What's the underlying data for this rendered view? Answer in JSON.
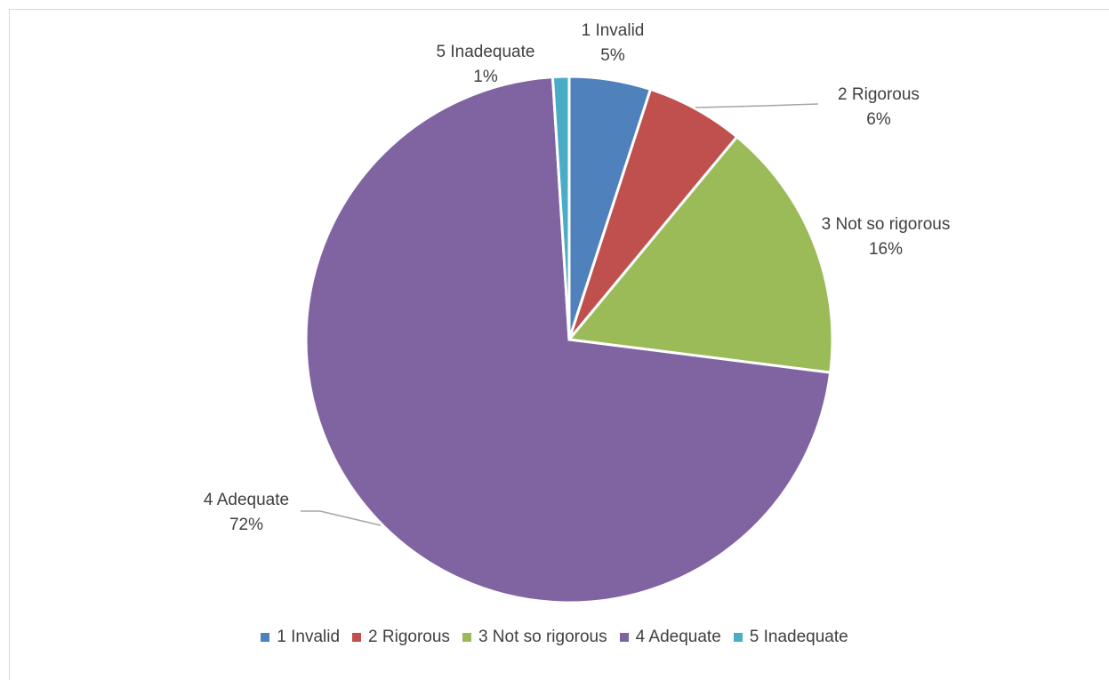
{
  "chart_data": {
    "type": "pie",
    "categories": [
      "1 Invalid",
      "2 Rigorous",
      "3 Not so rigorous",
      "4 Adequate",
      "5 Inadequate"
    ],
    "values": [
      5,
      6,
      16,
      72,
      1
    ],
    "value_labels": [
      "5%",
      "6%",
      "16%",
      "72%",
      "1%"
    ],
    "colors": [
      "#4F81BD",
      "#C0504D",
      "#9BBB59",
      "#8064A2",
      "#4BACC6"
    ],
    "legend_position": "bottom",
    "title": ""
  }
}
